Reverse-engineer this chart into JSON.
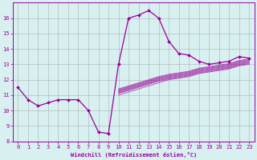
{
  "xlabel": "Windchill (Refroidissement éolien,°C)",
  "x_values": [
    0,
    1,
    2,
    3,
    4,
    5,
    6,
    7,
    8,
    9,
    10,
    11,
    12,
    13,
    14,
    15,
    16,
    17,
    18,
    19,
    20,
    21,
    22,
    23
  ],
  "y_main": [
    11.5,
    10.7,
    10.3,
    10.5,
    10.7,
    10.7,
    10.7,
    10.0,
    8.6,
    8.5,
    13.0,
    16.0,
    16.2,
    16.5,
    16.0,
    14.5,
    13.7,
    13.6,
    13.2,
    13.0,
    13.1,
    13.2,
    13.5,
    13.4
  ],
  "band_x": [
    10,
    11,
    12,
    13,
    14,
    15,
    16,
    17,
    18,
    19,
    20,
    21,
    22,
    23
  ],
  "band_lines": [
    [
      11.0,
      11.2,
      11.4,
      11.6,
      11.8,
      12.0,
      12.1,
      12.2,
      12.4,
      12.5,
      12.6,
      12.7,
      12.9,
      13.0
    ],
    [
      11.1,
      11.3,
      11.5,
      11.7,
      11.9,
      12.05,
      12.15,
      12.25,
      12.45,
      12.55,
      12.65,
      12.75,
      12.95,
      13.05
    ],
    [
      11.15,
      11.35,
      11.55,
      11.75,
      11.95,
      12.1,
      12.2,
      12.3,
      12.5,
      12.6,
      12.7,
      12.8,
      13.0,
      13.1
    ],
    [
      11.2,
      11.4,
      11.6,
      11.8,
      12.0,
      12.15,
      12.25,
      12.35,
      12.55,
      12.65,
      12.75,
      12.85,
      13.05,
      13.15
    ],
    [
      11.25,
      11.45,
      11.65,
      11.85,
      12.05,
      12.2,
      12.3,
      12.4,
      12.6,
      12.7,
      12.8,
      12.9,
      13.1,
      13.2
    ],
    [
      11.3,
      11.5,
      11.7,
      11.9,
      12.1,
      12.25,
      12.35,
      12.45,
      12.65,
      12.75,
      12.85,
      12.95,
      13.15,
      13.25
    ],
    [
      11.35,
      11.55,
      11.75,
      11.95,
      12.15,
      12.3,
      12.4,
      12.5,
      12.7,
      12.8,
      12.9,
      13.0,
      13.2,
      13.3
    ],
    [
      11.4,
      11.6,
      11.8,
      12.0,
      12.2,
      12.35,
      12.45,
      12.55,
      12.75,
      12.85,
      12.95,
      13.05,
      13.25,
      13.35
    ]
  ],
  "line_color": "#990099",
  "bg_color": "#d8f0f0",
  "grid_color": "#a0a0a0",
  "ylim": [
    8,
    17
  ],
  "xlim": [
    -0.5,
    23.5
  ],
  "yticks": [
    8,
    9,
    10,
    11,
    12,
    13,
    14,
    15,
    16
  ],
  "xticks": [
    0,
    1,
    2,
    3,
    4,
    5,
    6,
    7,
    8,
    9,
    10,
    11,
    12,
    13,
    14,
    15,
    16,
    17,
    18,
    19,
    20,
    21,
    22,
    23
  ]
}
